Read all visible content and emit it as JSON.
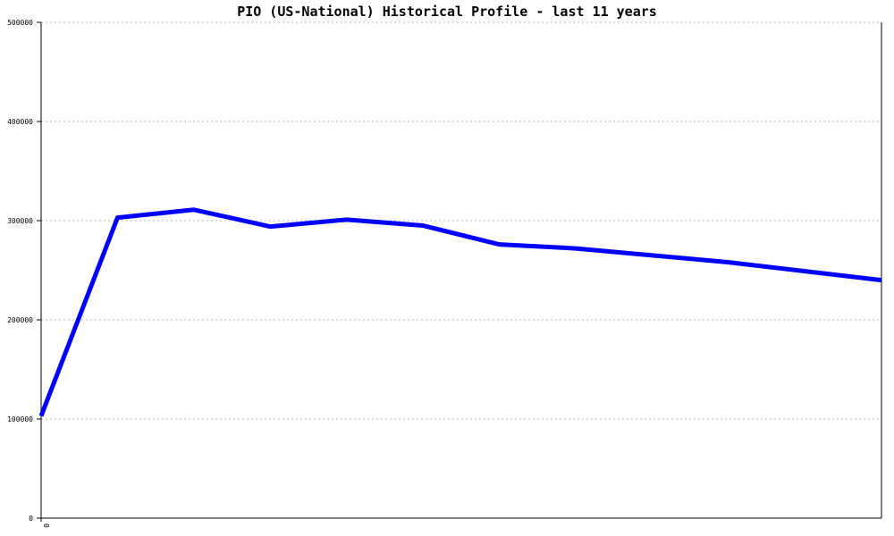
{
  "chart_data": {
    "type": "line",
    "title": "PIO (US-National) Historical Profile - last 11 years",
    "xlabel": "",
    "ylabel": "",
    "x": [
      0,
      1,
      2,
      3,
      4,
      5,
      6,
      7,
      8,
      9,
      10,
      11
    ],
    "x_tick_labels": [
      "0"
    ],
    "ylim": [
      0,
      500000
    ],
    "y_ticks": [
      0,
      100000,
      200000,
      300000,
      400000,
      500000
    ],
    "y_tick_labels": [
      "0",
      "100000",
      "200000",
      "300000",
      "400000",
      "500000"
    ],
    "grid": true,
    "series": [
      {
        "values": [
          103000,
          303000,
          311000,
          294000,
          301000,
          295000,
          276000,
          272000,
          265000,
          258000,
          249000,
          240000
        ],
        "color": "#0000ff"
      }
    ],
    "colors": {
      "line": "#0000ff",
      "grid": "#b4b4b4",
      "axis": "#000000",
      "background": "#ffffff"
    }
  }
}
